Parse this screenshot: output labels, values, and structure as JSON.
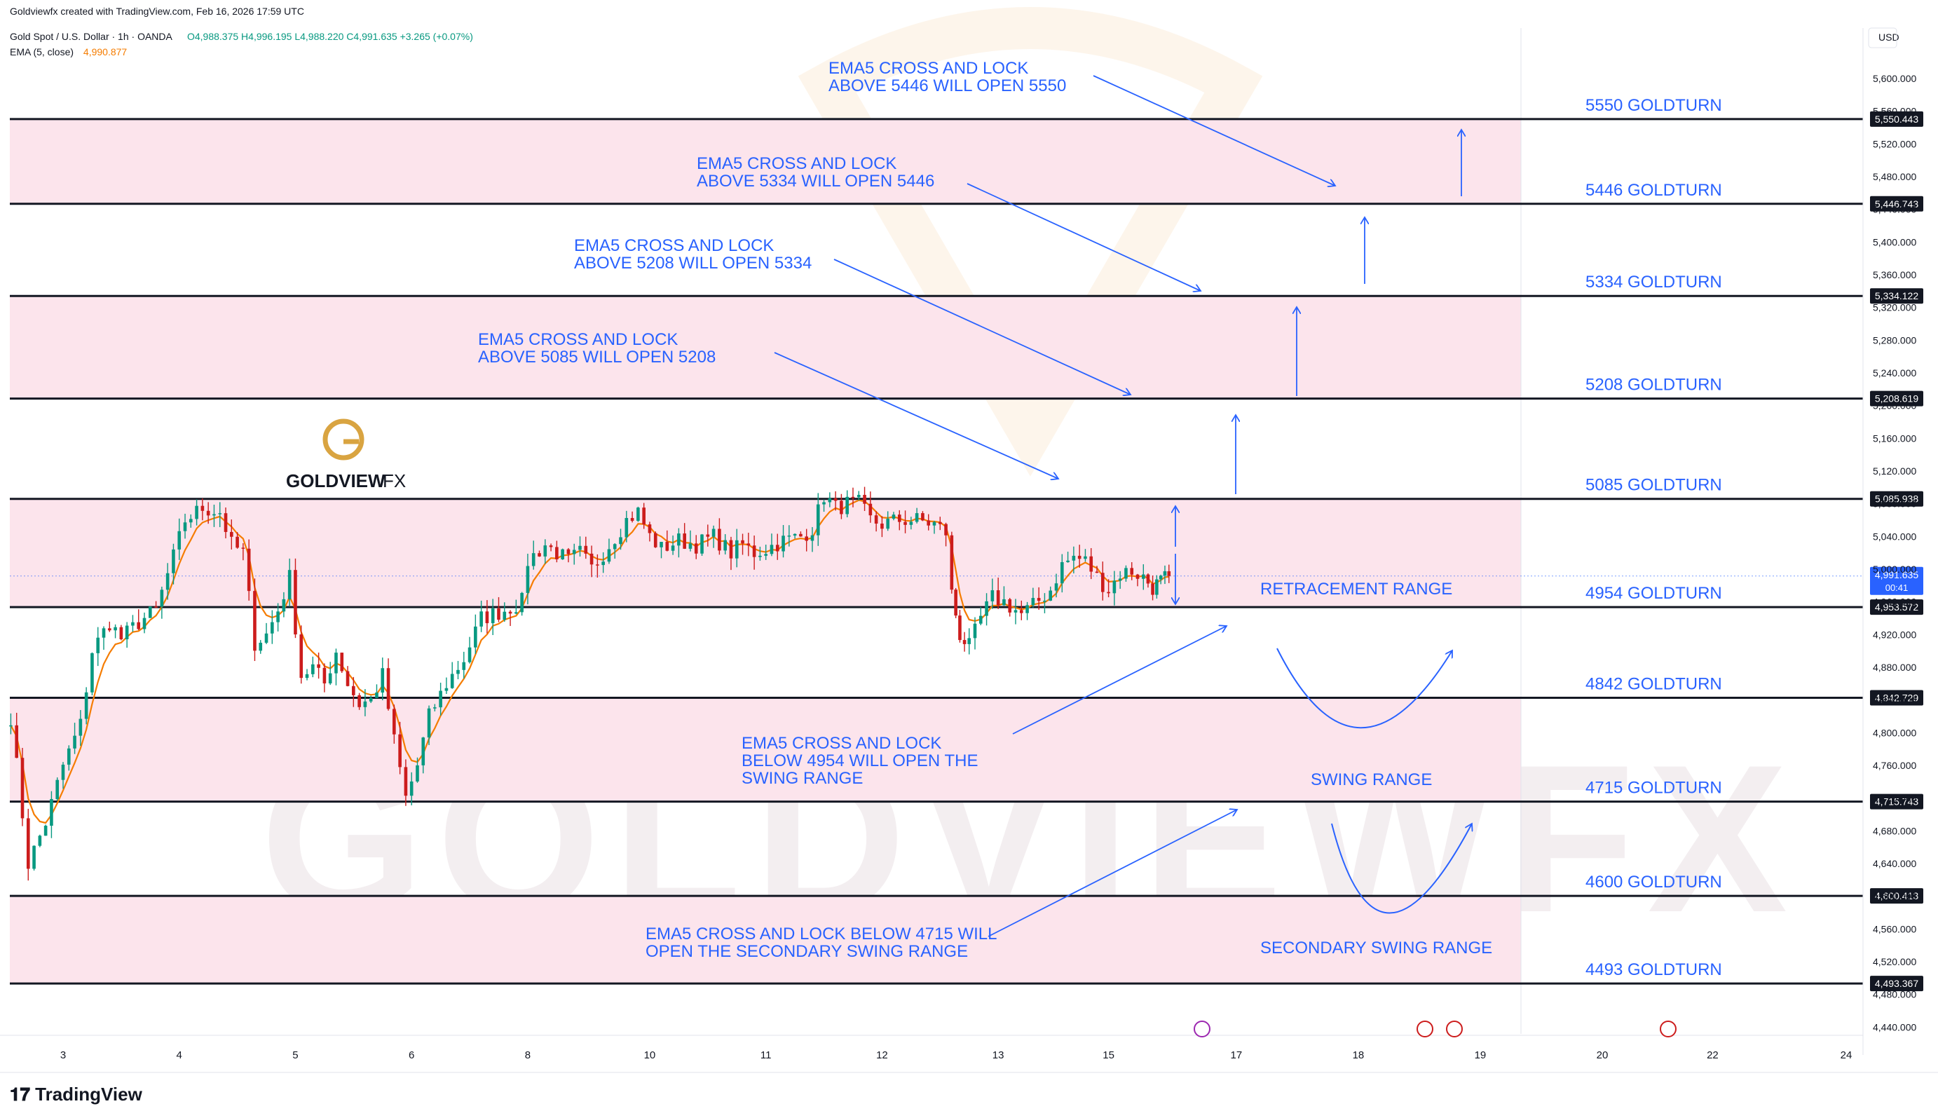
{
  "header": {
    "credit": "Goldviewfx created with TradingView.com, Feb 16, 2026 17:59 UTC",
    "symbol": "Gold Spot / U.S. Dollar · 1h · OANDA",
    "ohlc": "O4,988.375 H4,996.195 L4,988.220 C4,991.635 +3.265 (+0.07%)",
    "ema_label": "EMA (5, close)",
    "ema_value": "4,990.877"
  },
  "currency": "USD",
  "branding": {
    "logo_text": "GOLDVIEW",
    "logo_suffix": "FX",
    "watermark": "GOLDVIEWFX",
    "footer": "TradingView"
  },
  "colors": {
    "up": "#089981",
    "down": "#cc1c1c",
    "ema": "#f57c00",
    "annotation": "#2962ff",
    "zone": "#fce4ec",
    "gold": "#d9a441"
  },
  "chart_data": {
    "type": "candlestick",
    "title": "Gold Spot / U.S. Dollar · 1h · OANDA",
    "y_range": [
      4400,
      5660
    ],
    "x_range": [
      2.5,
      24.6
    ],
    "y_ticks": [
      "5,600.000",
      "5,560.000",
      "5,520.000",
      "5,480.000",
      "5,440.000",
      "5,400.000",
      "5,360.000",
      "5,320.000",
      "5,280.000",
      "5,240.000",
      "5,200.000",
      "5,160.000",
      "5,120.000",
      "5,080.000",
      "5,040.000",
      "5,000.000",
      "4,960.000",
      "4,920.000",
      "4,880.000",
      "4,840.000",
      "4,800.000",
      "4,760.000",
      "4,720.000",
      "4,680.000",
      "4,640.000",
      "4,600.000",
      "4,560.000",
      "4,520.000",
      "4,480.000",
      "4,440.000"
    ],
    "x_ticks": [
      {
        "label": "3",
        "x": 3.0
      },
      {
        "label": "4",
        "x": 4.0
      },
      {
        "label": "5",
        "x": 5.0
      },
      {
        "label": "6",
        "x": 6.0
      },
      {
        "label": "8",
        "x": 7.0
      },
      {
        "label": "10",
        "x": 8.05
      },
      {
        "label": "11",
        "x": 9.05
      },
      {
        "label": "12",
        "x": 10.05
      },
      {
        "label": "13",
        "x": 11.05
      },
      {
        "label": "15",
        "x": 12.0
      },
      {
        "label": "17",
        "x": 13.1
      },
      {
        "label": "18",
        "x": 14.15
      },
      {
        "label": "19",
        "x": 15.2
      },
      {
        "label": "20",
        "x": 16.25
      },
      {
        "label": "22",
        "x": 17.2
      },
      {
        "label": "24",
        "x": 18.35
      }
    ],
    "levels": [
      {
        "value": 5550.443,
        "price_label": "5,550.443",
        "name": "5550 GOLDTURN"
      },
      {
        "value": 5446.743,
        "price_label": "5,446.743",
        "name": "5446 GOLDTURN"
      },
      {
        "value": 5334.122,
        "price_label": "5,334.122",
        "name": "5334 GOLDTURN"
      },
      {
        "value": 5208.619,
        "price_label": "5,208.619",
        "name": "5208 GOLDTURN"
      },
      {
        "value": 5085.938,
        "price_label": "5,085.938",
        "name": "5085 GOLDTURN"
      },
      {
        "value": 4953.572,
        "price_label": "4,953.572",
        "name": "4954 GOLDTURN"
      },
      {
        "value": 4842.729,
        "price_label": "4,842.729",
        "name": "4842 GOLDTURN"
      },
      {
        "value": 4715.743,
        "price_label": "4,715.743",
        "name": "4715 GOLDTURN"
      },
      {
        "value": 4600.413,
        "price_label": "4,600.413",
        "name": "4600 GOLDTURN"
      },
      {
        "value": 4493.367,
        "price_label": "4,493.367",
        "name": "4493 GOLDTURN"
      }
    ],
    "zones": [
      [
        5446.743,
        5550.443
      ],
      [
        5208.619,
        5334.122
      ],
      [
        4953.572,
        5085.938
      ],
      [
        4715.743,
        4842.729
      ],
      [
        4493.367,
        4600.413
      ]
    ],
    "current_price": {
      "value": 4991.635,
      "label": "4,991.635",
      "countdown": "00:41"
    },
    "waypoints": [
      [
        2.55,
        4820
      ],
      [
        2.7,
        4640
      ],
      [
        2.85,
        4690
      ],
      [
        3.0,
        4760
      ],
      [
        3.15,
        4810
      ],
      [
        3.25,
        4900
      ],
      [
        3.4,
        4935
      ],
      [
        3.5,
        4915
      ],
      [
        3.65,
        4935
      ],
      [
        3.8,
        4950
      ],
      [
        3.95,
        5015
      ],
      [
        4.05,
        5060
      ],
      [
        4.2,
        5075
      ],
      [
        4.35,
        5070
      ],
      [
        4.45,
        5030
      ],
      [
        4.55,
        5020
      ],
      [
        4.65,
        4910
      ],
      [
        4.75,
        4920
      ],
      [
        4.85,
        4950
      ],
      [
        4.95,
        4990
      ],
      [
        5.05,
        4870
      ],
      [
        5.15,
        4880
      ],
      [
        5.25,
        4860
      ],
      [
        5.35,
        4900
      ],
      [
        5.45,
        4860
      ],
      [
        5.55,
        4835
      ],
      [
        5.65,
        4840
      ],
      [
        5.75,
        4870
      ],
      [
        5.85,
        4790
      ],
      [
        5.95,
        4720
      ],
      [
        6.05,
        4760
      ],
      [
        6.15,
        4820
      ],
      [
        6.3,
        4860
      ],
      [
        6.45,
        4890
      ],
      [
        6.6,
        4940
      ],
      [
        6.8,
        4950
      ],
      [
        6.95,
        4960
      ],
      [
        7.0,
        5010
      ],
      [
        7.15,
        5030
      ],
      [
        7.25,
        5020
      ],
      [
        7.35,
        5010
      ],
      [
        7.45,
        5020
      ],
      [
        7.55,
        5000
      ],
      [
        7.7,
        5030
      ],
      [
        7.85,
        5060
      ],
      [
        7.95,
        5070
      ],
      [
        8.05,
        5040
      ],
      [
        8.15,
        5025
      ],
      [
        8.3,
        5035
      ],
      [
        8.45,
        5030
      ],
      [
        8.6,
        5040
      ],
      [
        8.75,
        5020
      ],
      [
        8.85,
        5030
      ],
      [
        8.95,
        5020
      ],
      [
        9.05,
        5025
      ],
      [
        9.2,
        5035
      ],
      [
        9.35,
        5040
      ],
      [
        9.45,
        5050
      ],
      [
        9.55,
        5090
      ],
      [
        9.65,
        5075
      ],
      [
        9.75,
        5080
      ],
      [
        9.85,
        5080
      ],
      [
        9.95,
        5060
      ],
      [
        10.05,
        5055
      ],
      [
        10.2,
        5060
      ],
      [
        10.35,
        5060
      ],
      [
        10.5,
        5055
      ],
      [
        10.6,
        5045
      ],
      [
        10.65,
        4970
      ],
      [
        10.72,
        4920
      ],
      [
        10.8,
        4905
      ],
      [
        10.9,
        4940
      ],
      [
        11.0,
        4965
      ],
      [
        11.1,
        4960
      ],
      [
        11.25,
        4945
      ],
      [
        11.35,
        4955
      ],
      [
        11.5,
        4975
      ],
      [
        11.6,
        5005
      ],
      [
        11.7,
        5015
      ],
      [
        11.8,
        5010
      ],
      [
        11.9,
        4990
      ],
      [
        12.0,
        4975
      ],
      [
        12.1,
        4995
      ],
      [
        12.2,
        4998
      ],
      [
        12.3,
        4990
      ],
      [
        12.38,
        4978
      ],
      [
        12.45,
        4985
      ],
      [
        12.52,
        4991.635
      ]
    ]
  },
  "annotations": [
    {
      "text": "EMA5 CROSS AND LOCK\nABOVE 5446 WILL OPEN 5550"
    },
    {
      "text": "EMA5 CROSS AND LOCK\nABOVE 5334 WILL OPEN 5446"
    },
    {
      "text": "EMA5 CROSS AND LOCK\nABOVE 5208 WILL OPEN 5334"
    },
    {
      "text": "EMA5 CROSS AND LOCK\nABOVE 5085 WILL OPEN 5208"
    },
    {
      "text": "EMA5 CROSS AND LOCK\nBELOW 4954 WILL OPEN THE\nSWING RANGE"
    },
    {
      "text": "EMA5 CROSS AND LOCK BELOW 4715 WILL\nOPEN THE SECONDARY SWING RANGE"
    }
  ],
  "range_labels": [
    "RETRACEMENT RANGE",
    "SWING RANGE",
    "SECONDARY SWING RANGE"
  ]
}
